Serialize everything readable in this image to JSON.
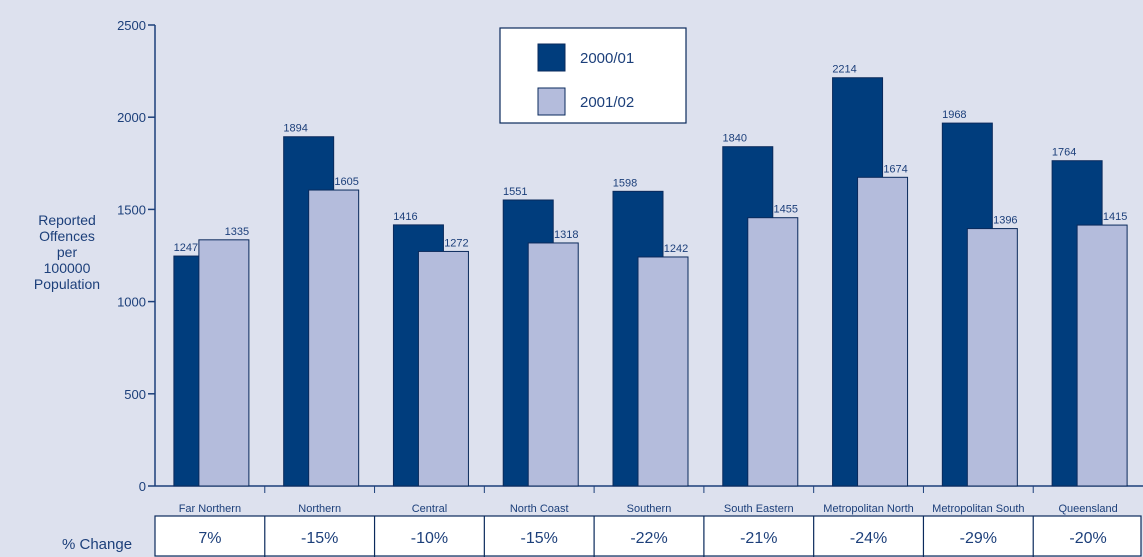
{
  "chart_data": {
    "type": "bar",
    "ylabel_lines": [
      "Reported",
      "Offences",
      "per",
      "100000",
      "Population"
    ],
    "ylim": [
      0,
      2500
    ],
    "yticks": [
      0,
      500,
      1000,
      1500,
      2000,
      2500
    ],
    "categories": [
      "Far Northern",
      "Northern",
      "Central",
      "North Coast",
      "Southern",
      "South Eastern",
      "Metropolitan North",
      "Metropolitan South",
      "Queensland"
    ],
    "series": [
      {
        "name": "2000/01",
        "color": "#003d7d",
        "values": [
          1247,
          1894,
          1416,
          1551,
          1598,
          1840,
          2214,
          1968,
          1764
        ]
      },
      {
        "name": "2001/02",
        "color": "#b4bcdc",
        "values": [
          1335,
          1605,
          1272,
          1318,
          1242,
          1455,
          1674,
          1396,
          1415
        ]
      }
    ],
    "pct_change_label": "% Change",
    "pct_change": [
      "7%",
      "-15%",
      "-10%",
      "-15%",
      "-22%",
      "-21%",
      "-24%",
      "-29%",
      "-20%"
    ],
    "legend_position": "top-center",
    "grid": false
  }
}
